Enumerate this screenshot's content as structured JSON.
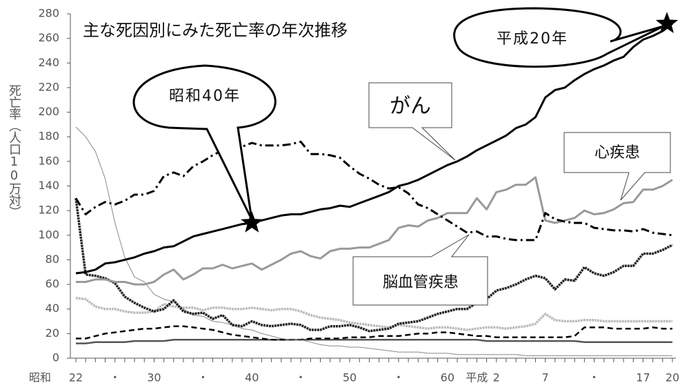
{
  "chart_data": {
    "type": "line",
    "title": "主な死因別にみた死亡率の年次推移",
    "y_label": "死亡率（人口10万対）",
    "x_era_label": "昭和",
    "categories": [
      "22",
      null,
      null,
      null,
      "・",
      null,
      null,
      null,
      "30",
      null,
      null,
      null,
      null,
      "・",
      null,
      null,
      null,
      null,
      "40",
      null,
      null,
      null,
      null,
      "・",
      null,
      null,
      null,
      null,
      "50",
      null,
      null,
      null,
      null,
      "・",
      null,
      null,
      null,
      null,
      "60",
      null,
      null,
      "平成",
      null,
      "2",
      null,
      null,
      null,
      null,
      "7",
      null,
      null,
      null,
      null,
      "・",
      null,
      null,
      null,
      null,
      "17",
      null,
      null,
      "20"
    ],
    "ylim": [
      0,
      280
    ],
    "yticks": [
      0,
      20,
      40,
      60,
      80,
      100,
      120,
      140,
      160,
      180,
      200,
      220,
      240,
      260,
      280
    ],
    "grid": false,
    "series": [
      {
        "name": "がん",
        "color": "#000000",
        "style": "solid-thick",
        "values": [
          69,
          70,
          72,
          77,
          78,
          80,
          82,
          85,
          87,
          90,
          91,
          95,
          99,
          101,
          103,
          105,
          107,
          109,
          110,
          112,
          114,
          116,
          117,
          117,
          119,
          121,
          122,
          124,
          123,
          126,
          129,
          132,
          135,
          140,
          142,
          145,
          149,
          153,
          157,
          160,
          164,
          169,
          173,
          177,
          181,
          187,
          190,
          196,
          212,
          218,
          220,
          226,
          231,
          235,
          238,
          242,
          245,
          253,
          259,
          262,
          266,
          272
        ]
      },
      {
        "name": "脳血管疾患",
        "color": "#000000",
        "style": "dash-dot",
        "values": [
          130,
          117,
          123,
          127,
          125,
          128,
          133,
          133,
          136,
          148,
          151,
          148,
          156,
          160,
          165,
          169,
          171,
          172,
          175,
          173,
          173,
          173,
          174,
          176,
          166,
          166,
          165,
          163,
          156,
          150,
          146,
          141,
          138,
          139,
          134,
          125,
          122,
          117,
          112,
          107,
          102,
          103,
          99,
          99,
          97,
          96,
          96,
          96,
          118,
          113,
          111,
          110,
          110,
          106,
          105,
          104,
          104,
          103,
          105,
          102,
          101,
          100
        ]
      },
      {
        "name": "心疾患",
        "color": "#999999",
        "style": "solid-thick",
        "values": [
          62,
          62,
          64,
          64,
          62,
          62,
          60,
          60,
          62,
          68,
          72,
          64,
          68,
          73,
          73,
          76,
          73,
          75,
          77,
          72,
          76,
          80,
          85,
          87,
          83,
          81,
          87,
          89,
          89,
          90,
          90,
          93,
          96,
          106,
          108,
          107,
          112,
          114,
          118,
          118,
          118,
          130,
          121,
          135,
          137,
          141,
          141,
          147,
          112,
          110,
          112,
          114,
          120,
          117,
          118,
          121,
          126,
          127,
          137,
          137,
          140,
          145
        ]
      },
      {
        "color": "#222222",
        "style": "dotted-thick",
        "values": [
          130,
          68,
          67,
          65,
          61,
          50,
          45,
          41,
          38,
          40,
          47,
          38,
          36,
          37,
          32,
          35,
          27,
          26,
          30,
          27,
          26,
          27,
          28,
          27,
          23,
          23,
          26,
          26,
          27,
          25,
          22,
          23,
          24,
          28,
          29,
          30,
          33,
          36,
          38,
          40,
          40,
          45,
          48,
          55,
          57,
          60,
          64,
          67,
          65,
          56,
          64,
          63,
          74,
          69,
          67,
          70,
          75,
          75,
          85,
          85,
          88,
          92
        ]
      },
      {
        "color": "#888888",
        "style": "thin",
        "values": [
          188,
          180,
          168,
          146,
          110,
          82,
          66,
          62,
          52,
          48,
          46,
          40,
          35,
          34,
          30,
          29,
          27,
          24,
          23,
          20,
          18,
          16,
          15,
          15,
          13,
          11,
          10,
          10,
          9,
          9,
          8,
          7,
          6,
          5,
          5,
          5,
          4,
          4,
          4,
          3,
          3,
          3,
          3,
          3,
          3,
          3,
          2,
          2,
          2,
          2,
          2,
          2,
          2,
          2,
          2,
          2,
          2,
          2,
          2,
          2,
          2,
          2
        ]
      },
      {
        "color": "#bbbbbb",
        "style": "dotted-thick",
        "values": [
          49,
          48,
          42,
          40,
          40,
          38,
          37,
          37,
          38,
          44,
          42,
          41,
          41,
          39,
          41,
          41,
          40,
          40,
          41,
          40,
          39,
          40,
          40,
          38,
          35,
          33,
          32,
          31,
          29,
          28,
          27,
          26,
          25,
          27,
          26,
          25,
          24,
          25,
          25,
          24,
          23,
          24,
          25,
          25,
          24,
          25,
          26,
          28,
          36,
          31,
          30,
          30,
          31,
          31,
          30,
          30,
          30,
          30,
          30,
          30,
          30,
          30
        ]
      },
      {
        "color": "#000000",
        "style": "dashed",
        "values": [
          16,
          16,
          18,
          20,
          21,
          22,
          23,
          24,
          24,
          25,
          26,
          26,
          25,
          24,
          23,
          21,
          19,
          18,
          17,
          16,
          15,
          15,
          15,
          15,
          16,
          16,
          16,
          16,
          17,
          17,
          17,
          18,
          18,
          18,
          19,
          20,
          20,
          21,
          21,
          20,
          19,
          18,
          18,
          17,
          17,
          17,
          17,
          17,
          17,
          17,
          17,
          18,
          25,
          25,
          25,
          24,
          24,
          24,
          24,
          25,
          24,
          24
        ]
      },
      {
        "color": "#555555",
        "style": "solid",
        "values": [
          12,
          12,
          13,
          13,
          13,
          13,
          14,
          14,
          14,
          14,
          15,
          15,
          15,
          15,
          15,
          15,
          15,
          15,
          15,
          15,
          15,
          15,
          15,
          15,
          15,
          15,
          15,
          15,
          15,
          15,
          15,
          15,
          15,
          15,
          15,
          15,
          15,
          15,
          15,
          15,
          15,
          15,
          14,
          14,
          14,
          14,
          14,
          14,
          14,
          14,
          14,
          14,
          13,
          13,
          13,
          13,
          13,
          13,
          13,
          13,
          13,
          13
        ]
      }
    ],
    "annotations": [
      "昭和40年",
      "平成20年"
    ]
  }
}
